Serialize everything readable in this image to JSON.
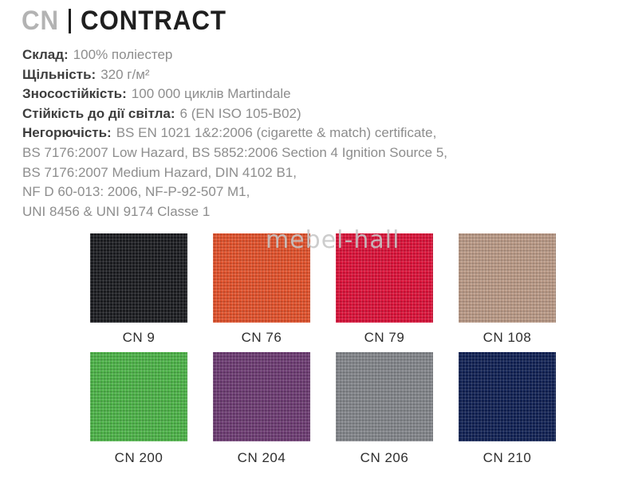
{
  "header": {
    "code": "CN",
    "name": "CONTRACT"
  },
  "specs": [
    {
      "label": "Склад:",
      "value": "100% поліестер"
    },
    {
      "label": "Щільність:",
      "value": "320 г/м²"
    },
    {
      "label": "Зносостійкість:",
      "value": "100 000 циклів Martindale"
    },
    {
      "label": "Стійкість до дії світла:",
      "value": "6 (EN ISO 105-B02)"
    },
    {
      "label": "Негорючість:",
      "value": "BS EN 1021 1&2:2006 (cigarette & match) certificate,"
    },
    {
      "label": "",
      "value": "BS 7176:2007 Low Hazard, BS 5852:2006 Section 4 Ignition Source 5,"
    },
    {
      "label": "",
      "value": "BS 7176:2007 Medium Hazard, DIN 4102 B1,"
    },
    {
      "label": "",
      "value": "NF D 60-013: 2006, NF-P-92-507 M1,"
    },
    {
      "label": "",
      "value": "UNI 8456 & UNI 9174 Classe 1"
    }
  ],
  "watermark": "mebel-hall",
  "swatches": {
    "rows": [
      [
        {
          "code": "CN 9",
          "color": "#191a1e"
        },
        {
          "code": "CN 76",
          "color": "#e4512a"
        },
        {
          "code": "CN 79",
          "color": "#de1038"
        },
        {
          "code": "CN 108",
          "color": "#bc9b87"
        }
      ],
      [
        {
          "code": "CN 200",
          "color": "#4cb447"
        },
        {
          "code": "CN 204",
          "color": "#6c3a72"
        },
        {
          "code": "CN 206",
          "color": "#83868b"
        },
        {
          "code": "CN 210",
          "color": "#0e1f53"
        }
      ]
    ]
  }
}
